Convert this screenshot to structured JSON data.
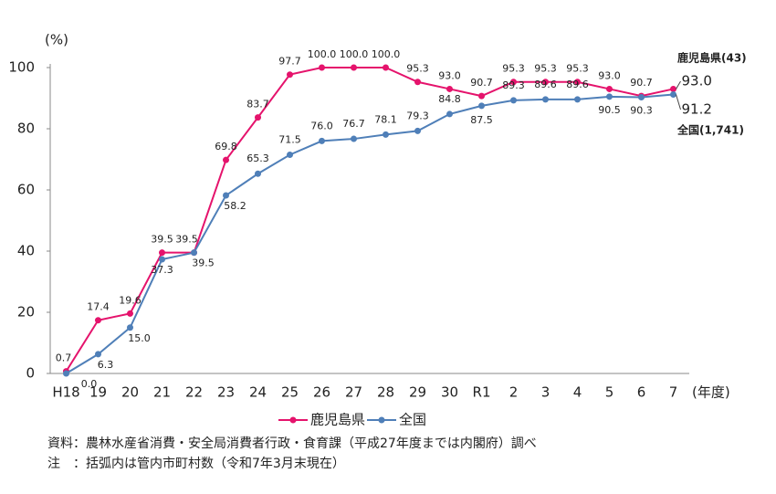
{
  "chart_data": {
    "type": "line",
    "y_unit": "(%)",
    "x_unit": "(年度)",
    "categories": [
      "H18",
      "19",
      "20",
      "21",
      "22",
      "23",
      "24",
      "25",
      "26",
      "27",
      "28",
      "29",
      "30",
      "R1",
      "2",
      "3",
      "4",
      "5",
      "6",
      "7"
    ],
    "series": [
      {
        "name": "鹿児島県",
        "color": "#e5136c",
        "values": [
          0.7,
          17.4,
          19.6,
          39.5,
          39.5,
          69.8,
          83.7,
          97.7,
          100,
          100,
          100,
          95.3,
          93,
          90.7,
          95.3,
          95.3,
          95.3,
          93,
          90.7,
          93
        ],
        "value_labels": [
          "0.7",
          "17.4",
          "19.6",
          "39.5",
          "39.5",
          "69.8",
          "83.7",
          "97.7",
          "100.0",
          "100.0",
          "100.0",
          "95.3",
          "93.0",
          "90.7",
          "95.3",
          "95.3",
          "95.3",
          "93.0",
          "90.7",
          "93.0"
        ]
      },
      {
        "name": "全国",
        "color": "#4f7fb8",
        "values": [
          0,
          6.3,
          15,
          37.3,
          39.5,
          58.2,
          65.3,
          71.5,
          76,
          76.7,
          78.1,
          79.3,
          84.8,
          87.5,
          89.3,
          89.6,
          89.6,
          90.5,
          90.3,
          91.2
        ],
        "value_labels": [
          "0.0",
          "6.3",
          "15.0",
          "37.3",
          "39.5",
          "58.2",
          "65.3",
          "71.5",
          "76.0",
          "76.7",
          "78.1",
          "79.3",
          "84.8",
          "87.5",
          "89.3",
          "89.6",
          "89.6",
          "90.5",
          "90.3",
          "91.2"
        ]
      }
    ],
    "annotations": [
      "鹿児島県(43)",
      "全国(1,741)"
    ],
    "ylim": [
      0,
      100
    ],
    "yticks": [
      0,
      20,
      40,
      60,
      80,
      100
    ],
    "notes": [
      "資料：農林水産省消費・安全局消費者行政・食育課（平成27年度までは内閣府）調べ",
      "注　：括弧内は管内市町村数（令和7年3月末現在）"
    ]
  }
}
